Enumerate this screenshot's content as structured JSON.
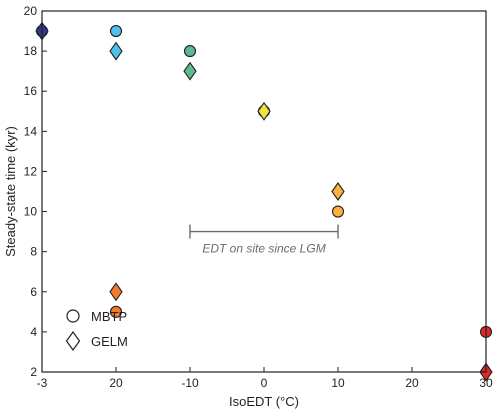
{
  "chart_data": {
    "type": "scatter",
    "title": "",
    "xlabel": "IsoEDT (°C)",
    "ylabel": "Steady-state time (kyr)",
    "x_tick_labels": [
      "-3",
      "20",
      "-10",
      "0",
      "10",
      "20",
      "30"
    ],
    "ylim": [
      2,
      20
    ],
    "y_ticks": [
      2,
      4,
      6,
      8,
      10,
      12,
      14,
      16,
      18,
      20
    ],
    "legend_position": "bottom-left",
    "series": [
      {
        "name": "MBTP",
        "marker": "circle",
        "points": [
          {
            "x": "-3",
            "y": 19,
            "color": "#2b3a8f"
          },
          {
            "x": "20",
            "y": 19,
            "color": "#4fc1ee"
          },
          {
            "x": "-10",
            "y": 18,
            "color": "#5fb991"
          },
          {
            "x": "0",
            "y": 15,
            "color": "#dfe13a"
          },
          {
            "x": "10",
            "y": 10,
            "color": "#fbb040"
          },
          {
            "x": "20",
            "y": 5,
            "color": "#f47b2a"
          },
          {
            "x": "30",
            "y": 4,
            "color": "#e02727"
          }
        ]
      },
      {
        "name": "GELM",
        "marker": "diamond",
        "points": [
          {
            "x": "-3",
            "y": 19,
            "color": "#2b3a8f"
          },
          {
            "x": "20",
            "y": 18,
            "color": "#4fc1ee"
          },
          {
            "x": "-10",
            "y": 17,
            "color": "#5fb991"
          },
          {
            "x": "0",
            "y": 15,
            "color": "#f0e442"
          },
          {
            "x": "10",
            "y": 11,
            "color": "#fbb040"
          },
          {
            "x": "20",
            "y": 6,
            "color": "#f47b2a"
          },
          {
            "x": "30",
            "y": 2,
            "color": "#e02727"
          }
        ]
      }
    ],
    "annotation": {
      "text": "EDT on site since LGM",
      "x_start": "-10",
      "x_end": "10",
      "y": 9
    },
    "colors": {
      "axis": "#231f20",
      "annotation": "#6b6b6b"
    }
  }
}
